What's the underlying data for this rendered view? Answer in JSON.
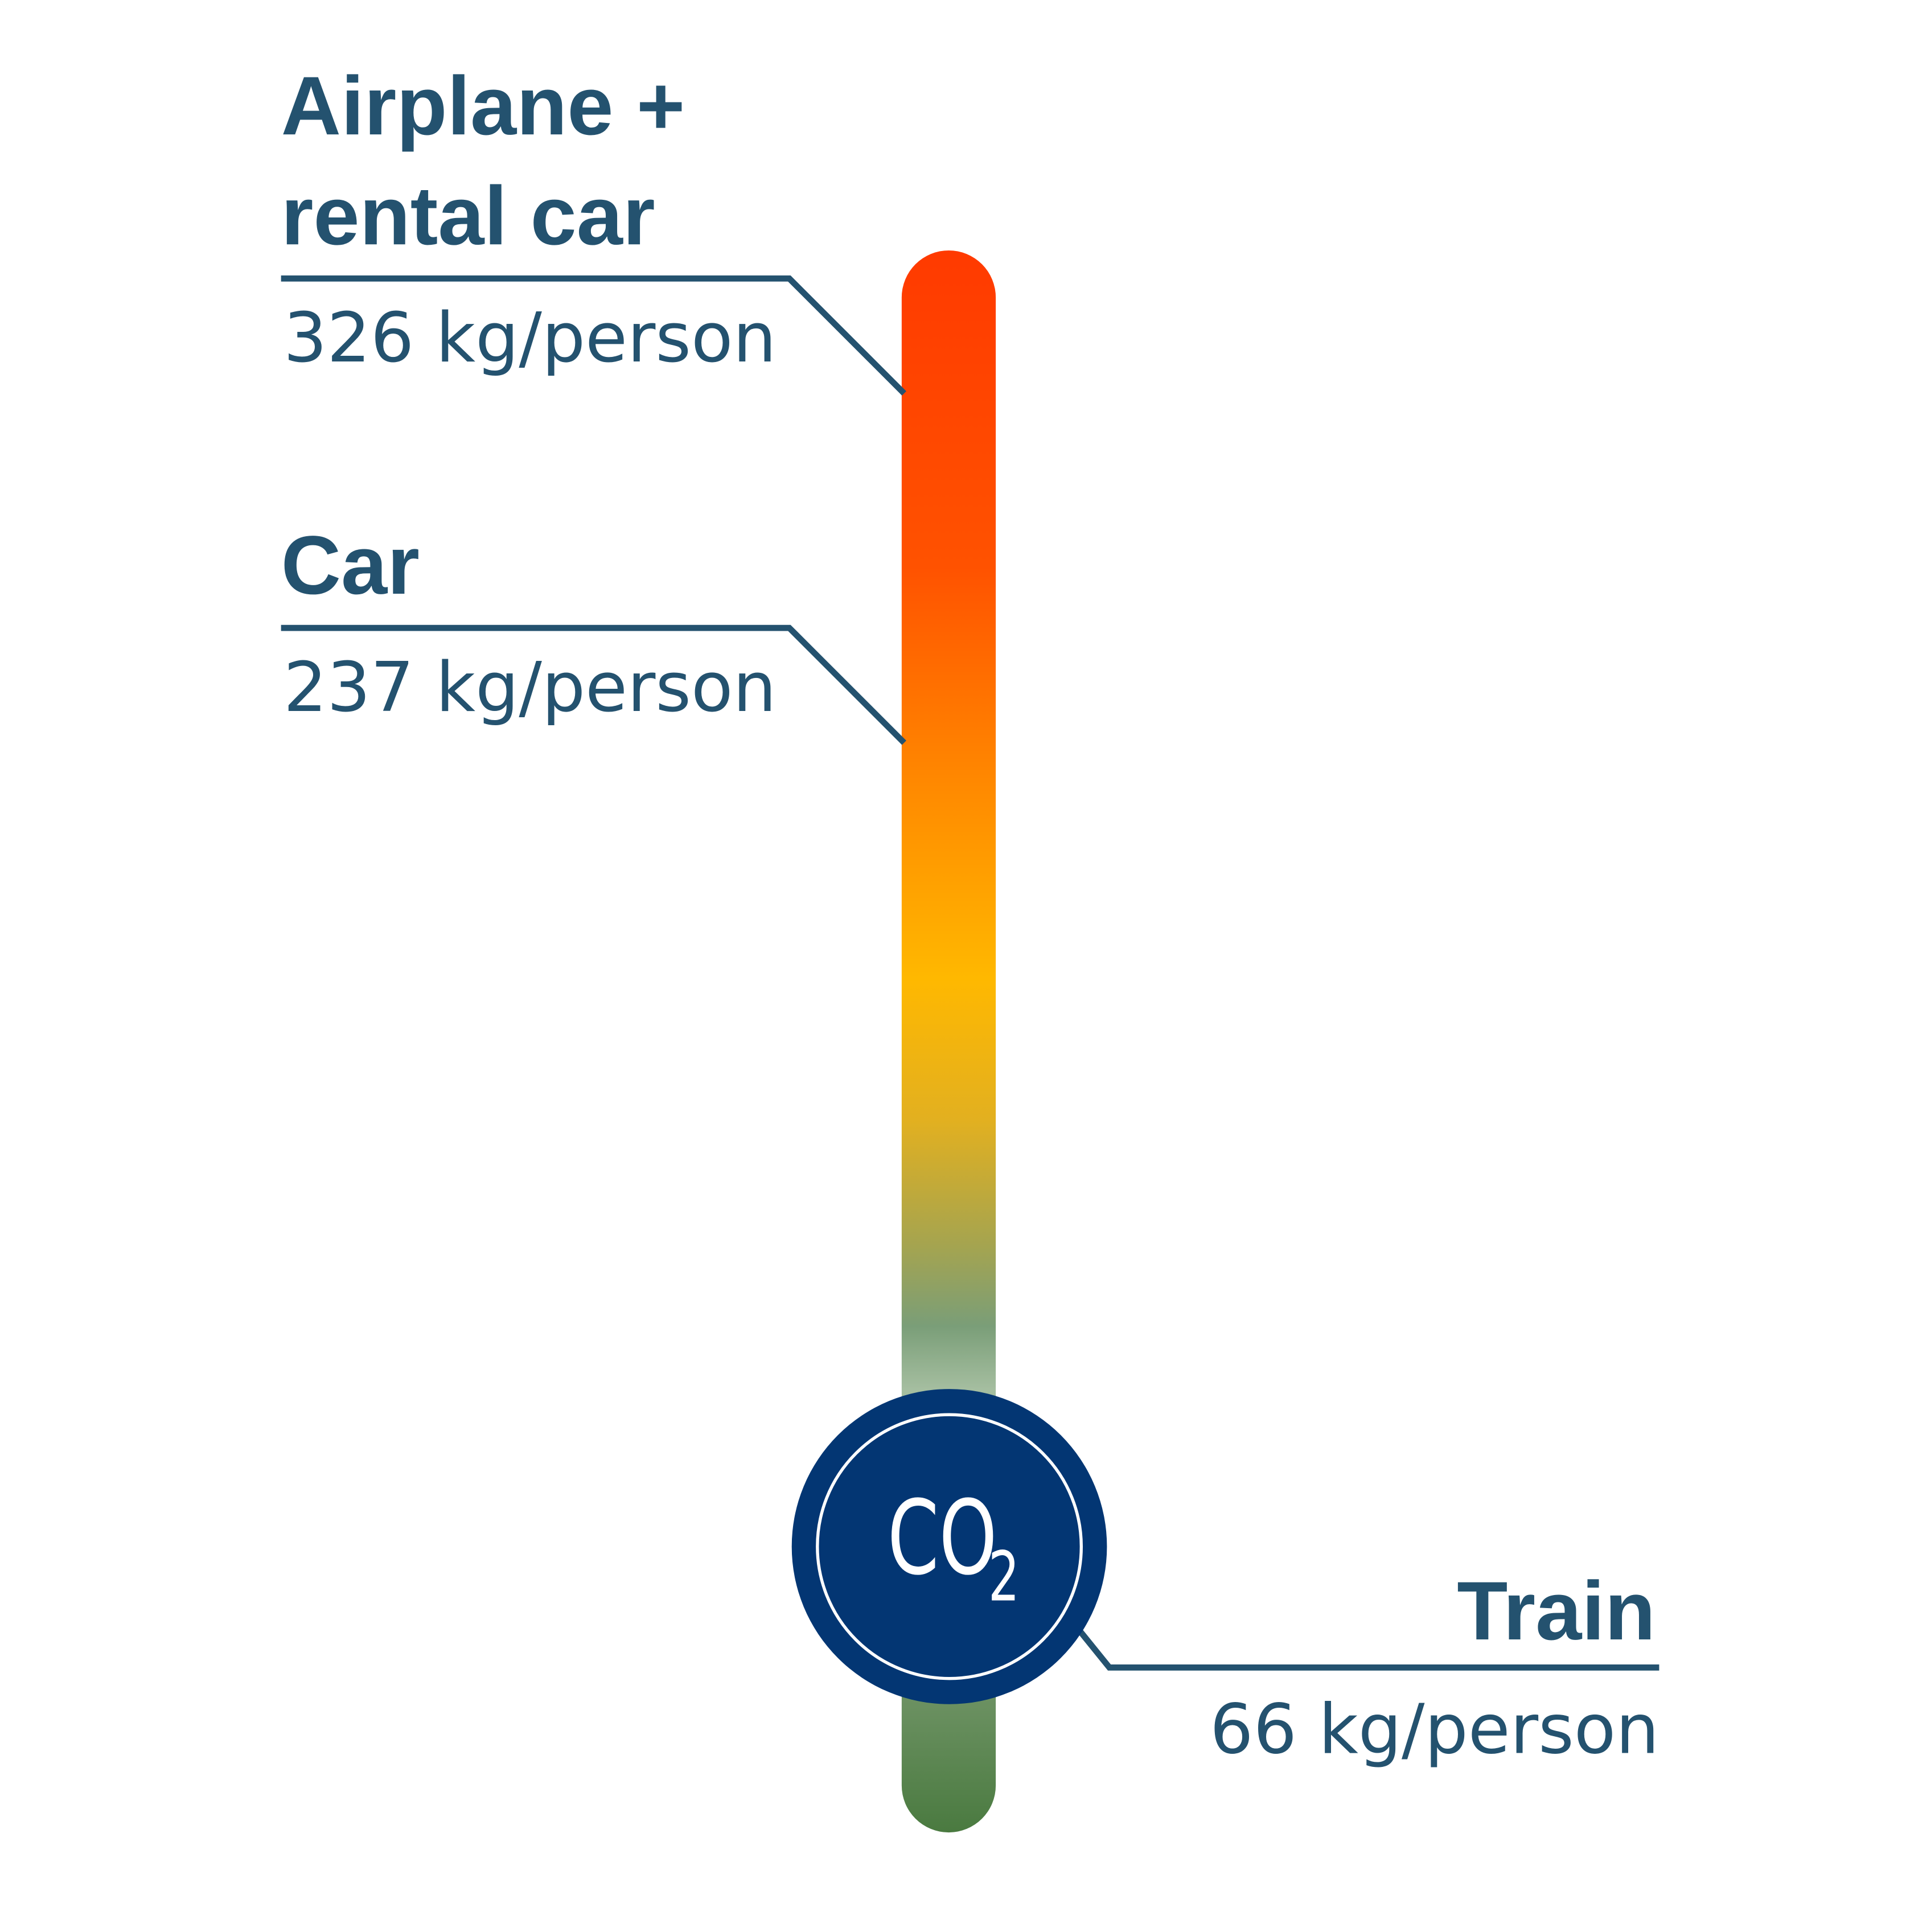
{
  "colors": {
    "text": "#24526f",
    "badge": "#033673",
    "bar_top": "#ff3a00",
    "bar_mid": "#ffb800",
    "bar_bottom": "#4a7a40"
  },
  "badge": {
    "label": "CO",
    "subscript": "2"
  },
  "chart_data": {
    "type": "bar",
    "unit": "kg/person",
    "categories": [
      "Airplane + rental car",
      "Car",
      "Train"
    ],
    "values": [
      326,
      237,
      66
    ],
    "labels": [
      {
        "title_line1": "Airplane +",
        "title_line2": "rental car",
        "value": "326 kg/person"
      },
      {
        "title_line1": "Car",
        "value": "237 kg/person"
      },
      {
        "title_line1": "Train",
        "value": "66 kg/person"
      }
    ]
  }
}
